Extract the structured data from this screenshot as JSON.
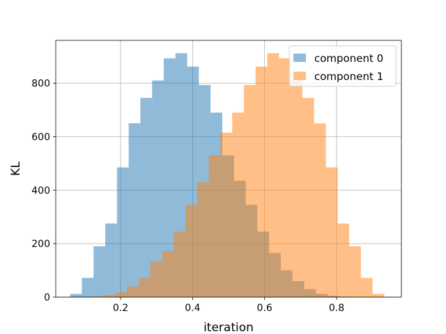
{
  "chart_data": {
    "type": "bar",
    "title": "",
    "xlabel": "iteration",
    "ylabel": "KL",
    "xlim": [
      0.02,
      0.98
    ],
    "ylim": [
      0,
      960
    ],
    "grid": true,
    "legend_placement": "top-right",
    "xticks": [
      {
        "value": 0.2,
        "label": "0.2"
      },
      {
        "value": 0.4,
        "label": "0.4"
      },
      {
        "value": 0.6,
        "label": "0.6"
      },
      {
        "value": 0.8,
        "label": "0.8"
      }
    ],
    "yticks": [
      {
        "value": 0,
        "label": "0"
      },
      {
        "value": 200,
        "label": "200"
      },
      {
        "value": 400,
        "label": "400"
      },
      {
        "value": 600,
        "label": "600"
      },
      {
        "value": 800,
        "label": "800"
      }
    ],
    "series": [
      {
        "name": "component 0",
        "color": "#1f77b4",
        "opacity": 0.5,
        "bin_start": 0.06,
        "bin_width": 0.0325,
        "values": [
          12,
          72,
          190,
          275,
          485,
          650,
          745,
          810,
          893,
          912,
          862,
          793,
          690,
          530,
          435,
          345,
          245,
          165,
          100,
          60,
          30,
          12,
          5,
          2,
          1,
          0,
          0,
          0
        ]
      },
      {
        "name": "component 1",
        "color": "#ff7f0e",
        "opacity": 0.5,
        "bin_start": 0.12,
        "bin_width": 0.0325,
        "values": [
          3,
          8,
          18,
          40,
          72,
          132,
          172,
          245,
          345,
          430,
          530,
          615,
          690,
          793,
          862,
          912,
          893,
          810,
          745,
          650,
          485,
          275,
          190,
          72,
          12,
          0,
          0,
          0
        ]
      }
    ]
  }
}
